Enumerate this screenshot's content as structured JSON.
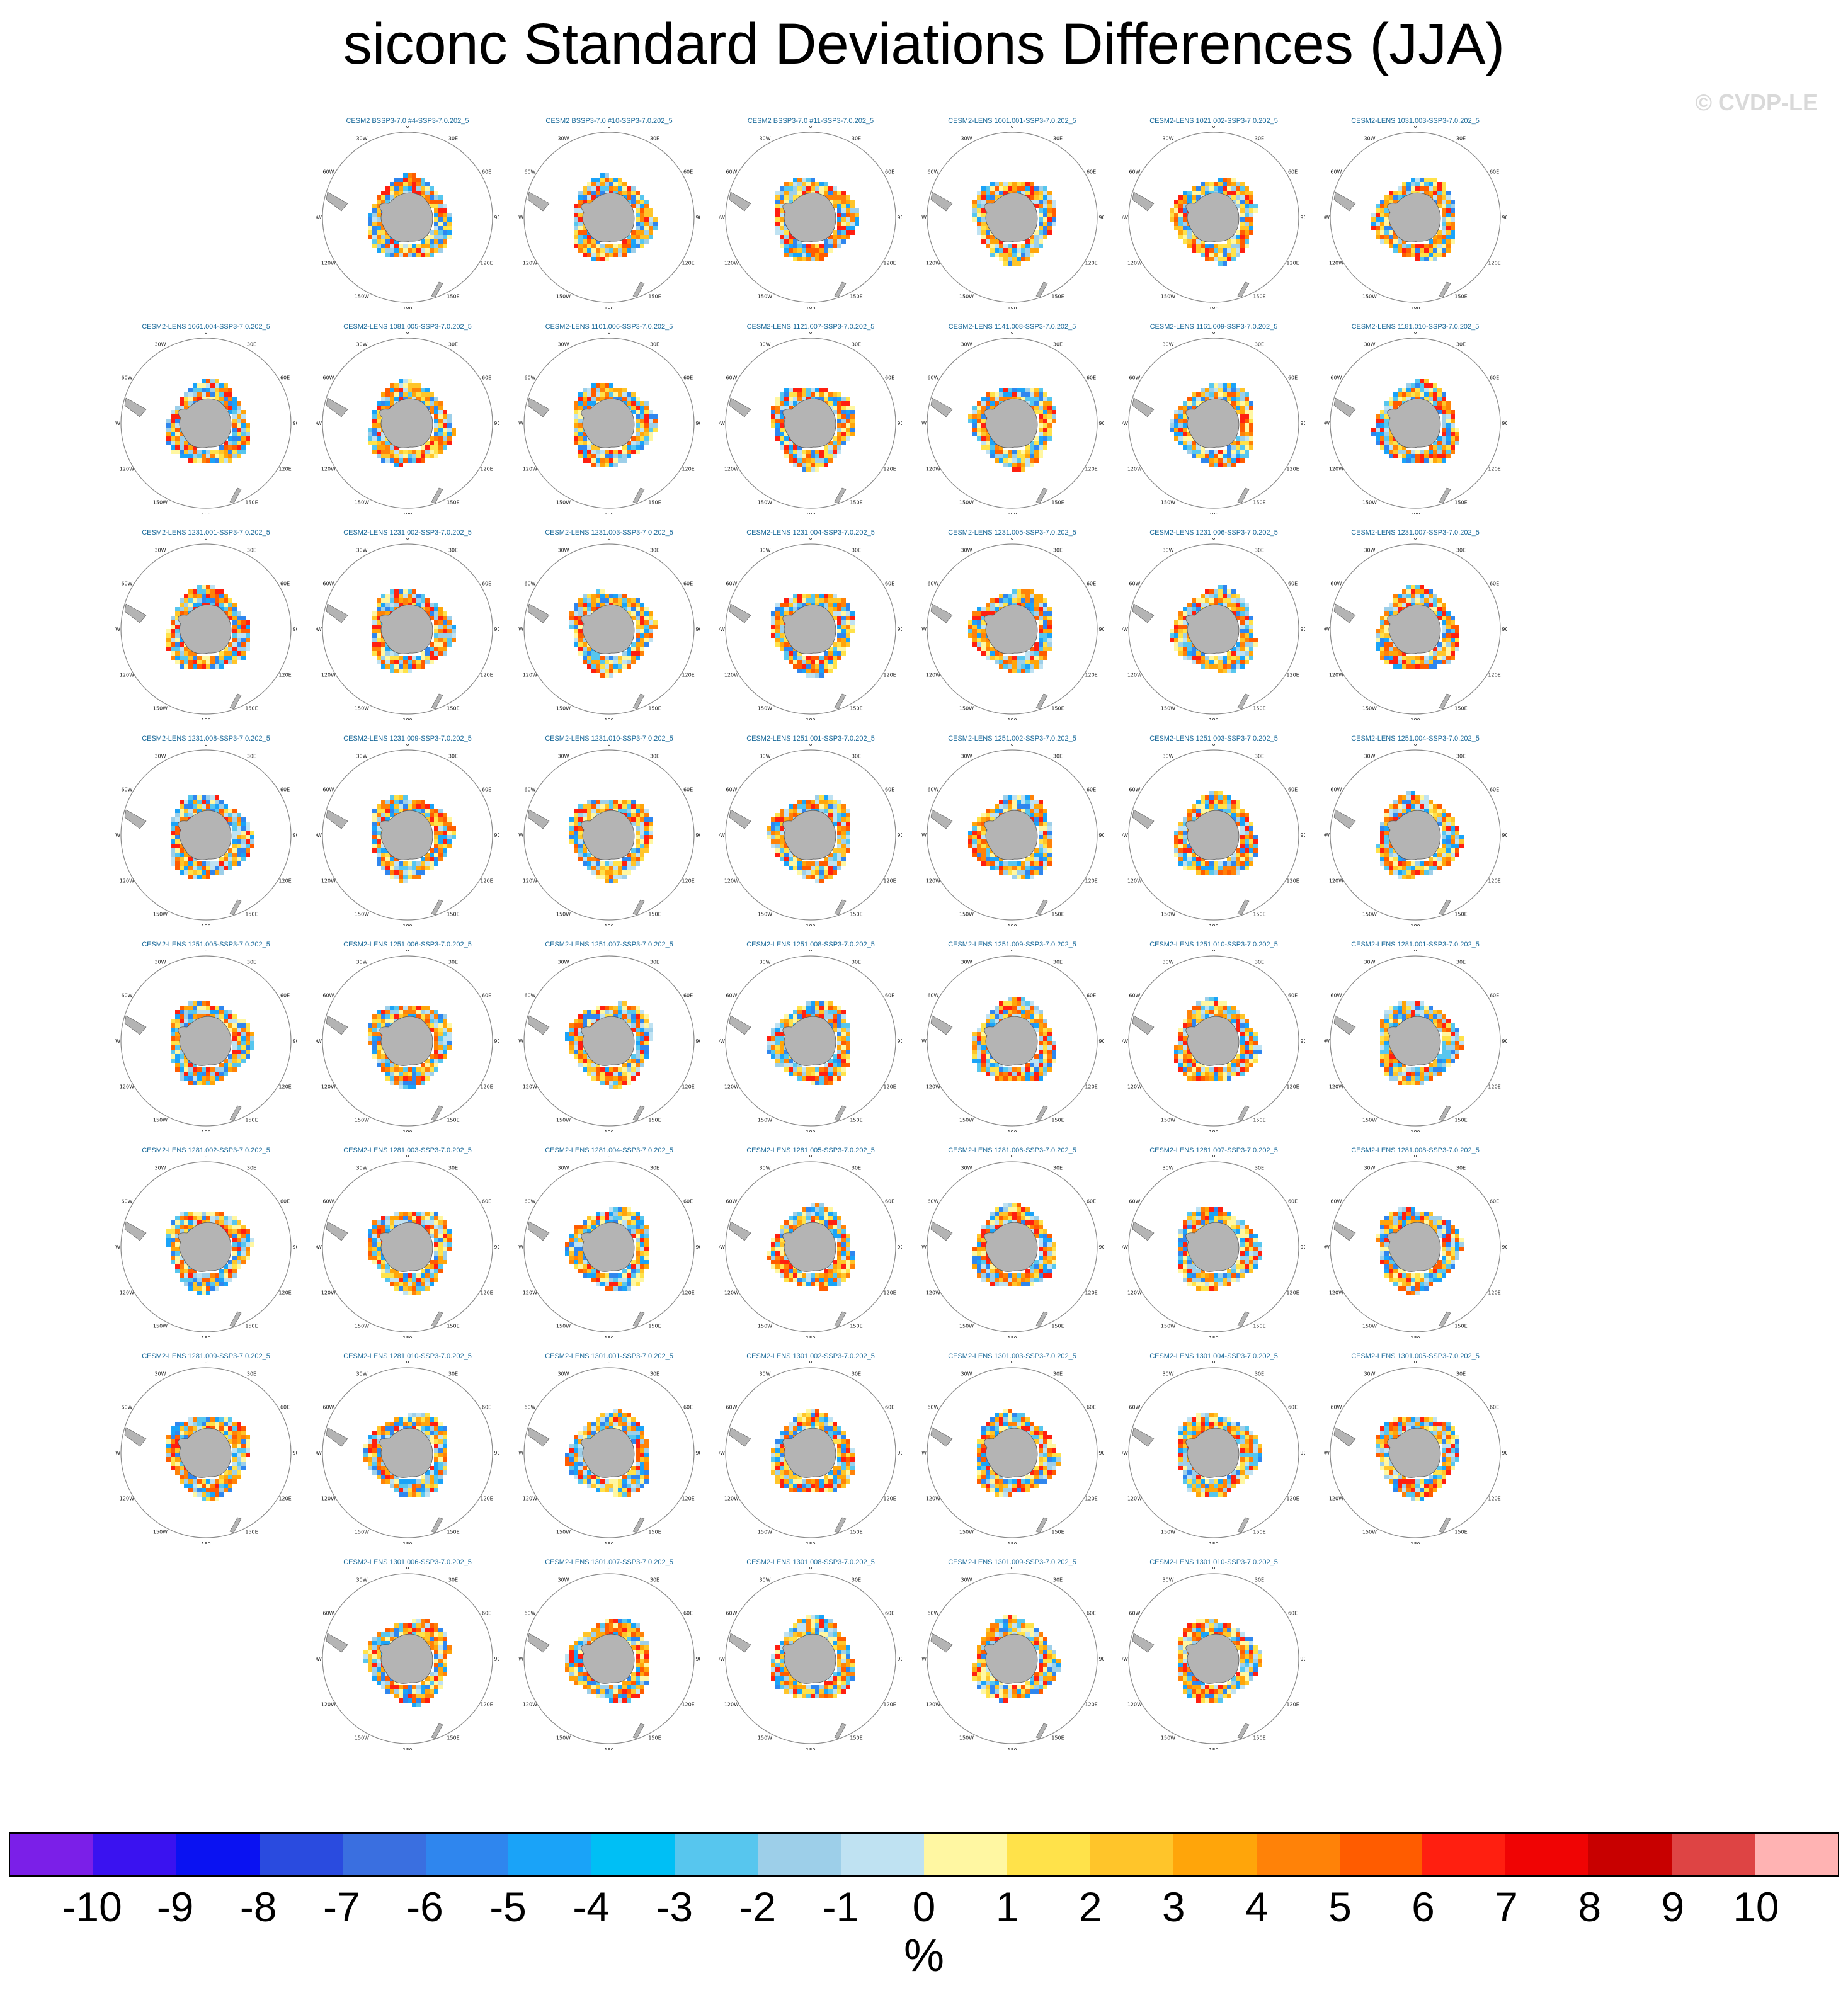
{
  "chart_data": {
    "type": "heatmap",
    "title": "siconc Standard Deviations Differences (JJA)",
    "watermark": "© CVDP-LE",
    "units": "%",
    "colorbar": {
      "ticks": [
        "-10",
        "-9",
        "-8",
        "-7",
        "-6",
        "-5",
        "-4",
        "-3",
        "-2",
        "-1",
        "0",
        "1",
        "2",
        "3",
        "4",
        "5",
        "6",
        "7",
        "8",
        "9",
        "10"
      ],
      "colors": [
        "#7b1fe8",
        "#3a12f0",
        "#0a12f2",
        "#2a4bdf",
        "#3a6fe0",
        "#2f86ee",
        "#1aa3f8",
        "#00bff5",
        "#57c6ee",
        "#9dcfe9",
        "#bfe2f2",
        "#fff7a2",
        "#ffe24a",
        "#ffc52a",
        "#ffa50a",
        "#ff8208",
        "#ff5c00",
        "#ff1f10",
        "#f00404",
        "#c80000",
        "#de4444",
        "#ffb3b3"
      ]
    },
    "map_labels": {
      "lon": [
        "0",
        "30E",
        "60E",
        "90E",
        "120E",
        "150E",
        "180",
        "150W",
        "120W",
        "90W",
        "60W",
        "30W"
      ],
      "lat_marks": [
        "s"
      ]
    },
    "panels": [
      {
        "row": 0,
        "col": 1,
        "title": "CESM2 BSSP3-7.0 #4-SSP3-7.0.202_5"
      },
      {
        "row": 0,
        "col": 2,
        "title": "CESM2 BSSP3-7.0 #10-SSP3-7.0.202_5"
      },
      {
        "row": 0,
        "col": 3,
        "title": "CESM2 BSSP3-7.0 #11-SSP3-7.0.202_5"
      },
      {
        "row": 0,
        "col": 4,
        "title": "CESM2-LENS 1001.001-SSP3-7.0.202_5"
      },
      {
        "row": 0,
        "col": 5,
        "title": "CESM2-LENS 1021.002-SSP3-7.0.202_5"
      },
      {
        "row": 0,
        "col": 6,
        "title": "CESM2-LENS 1031.003-SSP3-7.0.202_5"
      },
      {
        "row": 1,
        "col": 0,
        "title": "CESM2-LENS 1061.004-SSP3-7.0.202_5"
      },
      {
        "row": 1,
        "col": 1,
        "title": "CESM2-LENS 1081.005-SSP3-7.0.202_5"
      },
      {
        "row": 1,
        "col": 2,
        "title": "CESM2-LENS 1101.006-SSP3-7.0.202_5"
      },
      {
        "row": 1,
        "col": 3,
        "title": "CESM2-LENS 1121.007-SSP3-7.0.202_5"
      },
      {
        "row": 1,
        "col": 4,
        "title": "CESM2-LENS 1141.008-SSP3-7.0.202_5"
      },
      {
        "row": 1,
        "col": 5,
        "title": "CESM2-LENS 1161.009-SSP3-7.0.202_5"
      },
      {
        "row": 1,
        "col": 6,
        "title": "CESM2-LENS 1181.010-SSP3-7.0.202_5"
      },
      {
        "row": 2,
        "col": 0,
        "title": "CESM2-LENS 1231.001-SSP3-7.0.202_5"
      },
      {
        "row": 2,
        "col": 1,
        "title": "CESM2-LENS 1231.002-SSP3-7.0.202_5"
      },
      {
        "row": 2,
        "col": 2,
        "title": "CESM2-LENS 1231.003-SSP3-7.0.202_5"
      },
      {
        "row": 2,
        "col": 3,
        "title": "CESM2-LENS 1231.004-SSP3-7.0.202_5"
      },
      {
        "row": 2,
        "col": 4,
        "title": "CESM2-LENS 1231.005-SSP3-7.0.202_5"
      },
      {
        "row": 2,
        "col": 5,
        "title": "CESM2-LENS 1231.006-SSP3-7.0.202_5"
      },
      {
        "row": 2,
        "col": 6,
        "title": "CESM2-LENS 1231.007-SSP3-7.0.202_5"
      },
      {
        "row": 3,
        "col": 0,
        "title": "CESM2-LENS 1231.008-SSP3-7.0.202_5"
      },
      {
        "row": 3,
        "col": 1,
        "title": "CESM2-LENS 1231.009-SSP3-7.0.202_5"
      },
      {
        "row": 3,
        "col": 2,
        "title": "CESM2-LENS 1231.010-SSP3-7.0.202_5"
      },
      {
        "row": 3,
        "col": 3,
        "title": "CESM2-LENS 1251.001-SSP3-7.0.202_5"
      },
      {
        "row": 3,
        "col": 4,
        "title": "CESM2-LENS 1251.002-SSP3-7.0.202_5"
      },
      {
        "row": 3,
        "col": 5,
        "title": "CESM2-LENS 1251.003-SSP3-7.0.202_5"
      },
      {
        "row": 3,
        "col": 6,
        "title": "CESM2-LENS 1251.004-SSP3-7.0.202_5"
      },
      {
        "row": 4,
        "col": 0,
        "title": "CESM2-LENS 1251.005-SSP3-7.0.202_5"
      },
      {
        "row": 4,
        "col": 1,
        "title": "CESM2-LENS 1251.006-SSP3-7.0.202_5"
      },
      {
        "row": 4,
        "col": 2,
        "title": "CESM2-LENS 1251.007-SSP3-7.0.202_5"
      },
      {
        "row": 4,
        "col": 3,
        "title": "CESM2-LENS 1251.008-SSP3-7.0.202_5"
      },
      {
        "row": 4,
        "col": 4,
        "title": "CESM2-LENS 1251.009-SSP3-7.0.202_5"
      },
      {
        "row": 4,
        "col": 5,
        "title": "CESM2-LENS 1251.010-SSP3-7.0.202_5"
      },
      {
        "row": 4,
        "col": 6,
        "title": "CESM2-LENS 1281.001-SSP3-7.0.202_5"
      },
      {
        "row": 5,
        "col": 0,
        "title": "CESM2-LENS 1281.002-SSP3-7.0.202_5"
      },
      {
        "row": 5,
        "col": 1,
        "title": "CESM2-LENS 1281.003-SSP3-7.0.202_5"
      },
      {
        "row": 5,
        "col": 2,
        "title": "CESM2-LENS 1281.004-SSP3-7.0.202_5"
      },
      {
        "row": 5,
        "col": 3,
        "title": "CESM2-LENS 1281.005-SSP3-7.0.202_5"
      },
      {
        "row": 5,
        "col": 4,
        "title": "CESM2-LENS 1281.006-SSP3-7.0.202_5"
      },
      {
        "row": 5,
        "col": 5,
        "title": "CESM2-LENS 1281.007-SSP3-7.0.202_5"
      },
      {
        "row": 5,
        "col": 6,
        "title": "CESM2-LENS 1281.008-SSP3-7.0.202_5"
      },
      {
        "row": 6,
        "col": 0,
        "title": "CESM2-LENS 1281.009-SSP3-7.0.202_5"
      },
      {
        "row": 6,
        "col": 1,
        "title": "CESM2-LENS 1281.010-SSP3-7.0.202_5"
      },
      {
        "row": 6,
        "col": 2,
        "title": "CESM2-LENS 1301.001-SSP3-7.0.202_5"
      },
      {
        "row": 6,
        "col": 3,
        "title": "CESM2-LENS 1301.002-SSP3-7.0.202_5"
      },
      {
        "row": 6,
        "col": 4,
        "title": "CESM2-LENS 1301.003-SSP3-7.0.202_5"
      },
      {
        "row": 6,
        "col": 5,
        "title": "CESM2-LENS 1301.004-SSP3-7.0.202_5"
      },
      {
        "row": 6,
        "col": 6,
        "title": "CESM2-LENS 1301.005-SSP3-7.0.202_5"
      },
      {
        "row": 7,
        "col": 1,
        "title": "CESM2-LENS 1301.006-SSP3-7.0.202_5"
      },
      {
        "row": 7,
        "col": 2,
        "title": "CESM2-LENS 1301.007-SSP3-7.0.202_5"
      },
      {
        "row": 7,
        "col": 3,
        "title": "CESM2-LENS 1301.008-SSP3-7.0.202_5"
      },
      {
        "row": 7,
        "col": 4,
        "title": "CESM2-LENS 1301.009-SSP3-7.0.202_5"
      },
      {
        "row": 7,
        "col": 5,
        "title": "CESM2-LENS 1301.010-SSP3-7.0.202_5"
      }
    ]
  }
}
